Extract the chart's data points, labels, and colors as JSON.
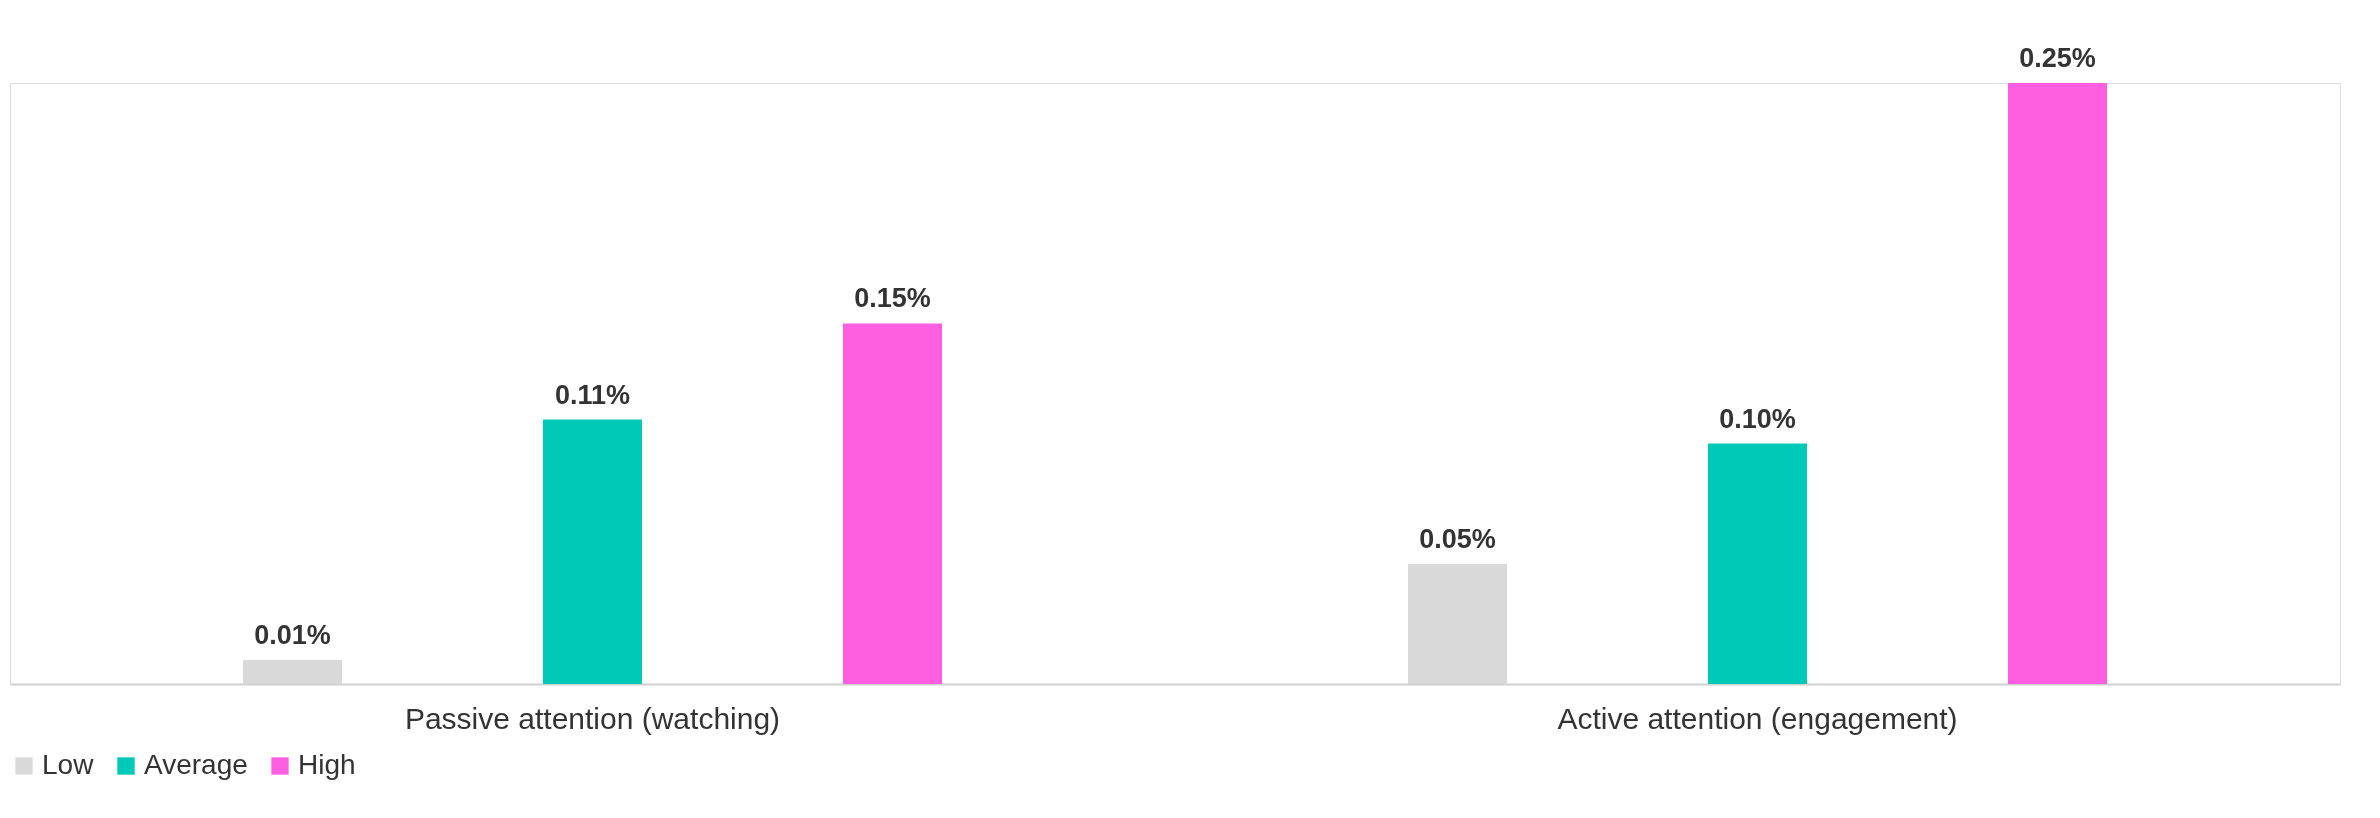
{
  "chart_data": {
    "type": "bar",
    "categories": [
      "Passive attention (watching)",
      "Active attention (engagement)"
    ],
    "series": [
      {
        "name": "Low",
        "color": "#d9d9d9",
        "values": [
          0.01,
          0.05
        ],
        "value_labels": [
          "0.01%",
          "0.05%"
        ]
      },
      {
        "name": "Average",
        "color": "#00c9b7",
        "values": [
          0.11,
          0.1
        ],
        "value_labels": [
          "0.11%",
          "0.10%"
        ]
      },
      {
        "name": "High",
        "color": "#fd5fe0",
        "values": [
          0.15,
          0.25
        ],
        "value_labels": [
          "0.15%",
          "0.25%"
        ]
      }
    ],
    "legend": "bottom",
    "grid": false
  }
}
